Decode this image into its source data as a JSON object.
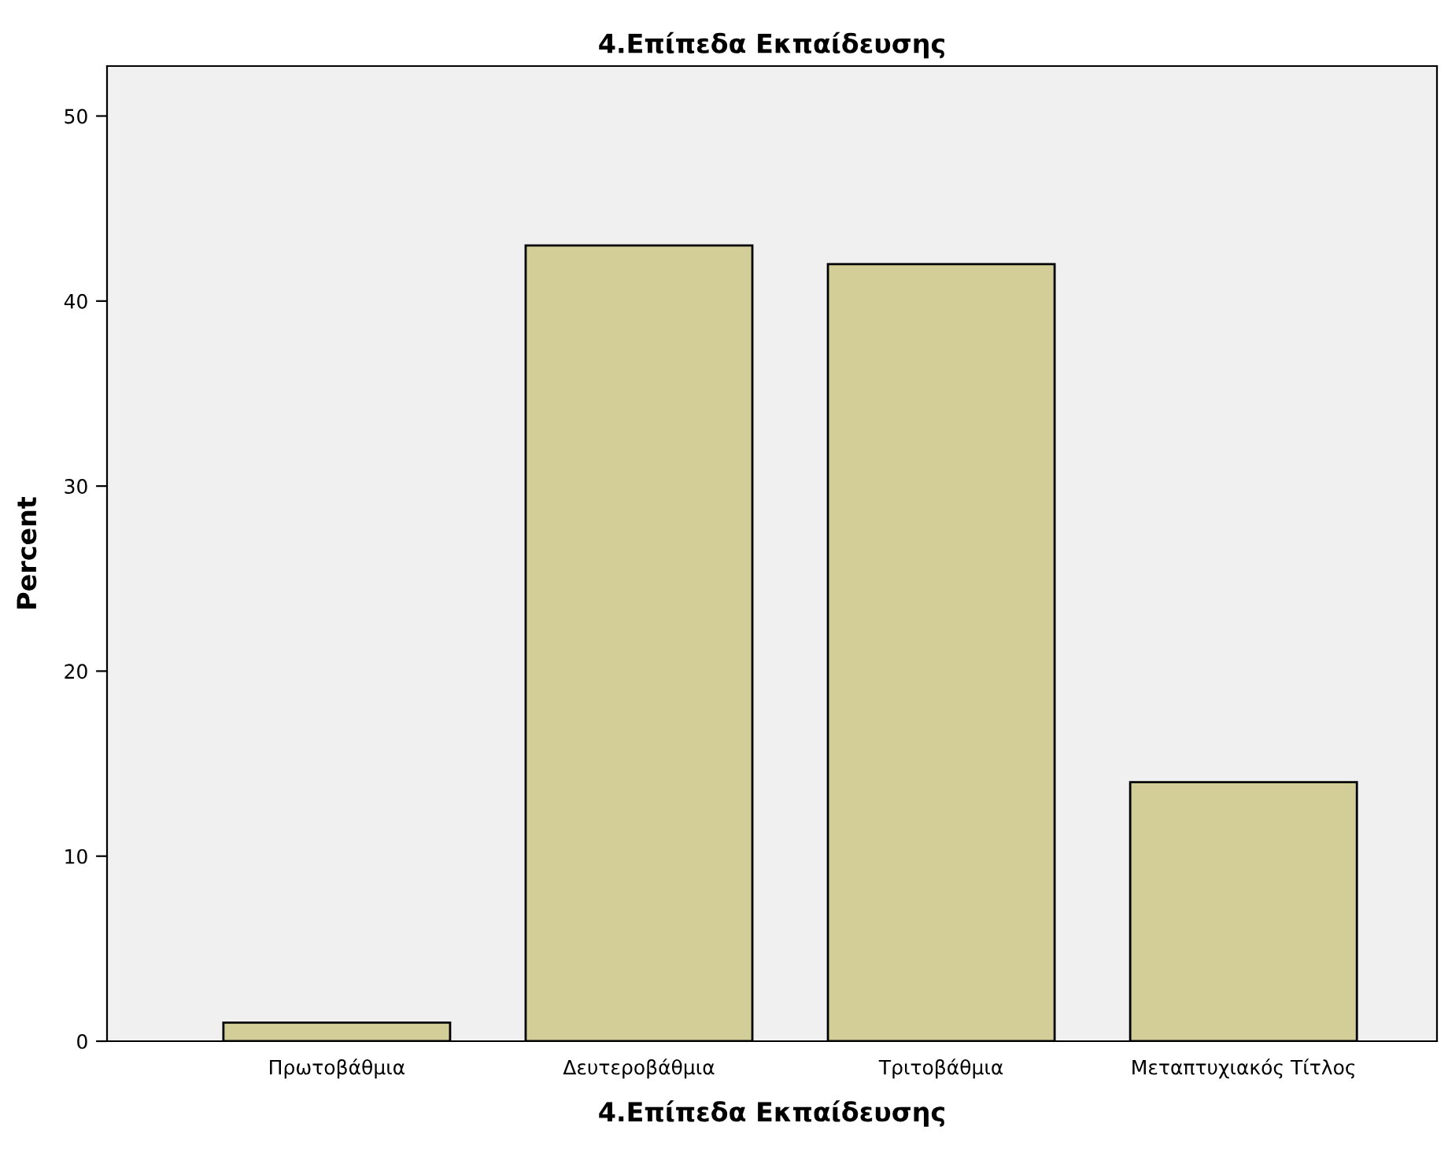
{
  "chart_data": {
    "type": "bar",
    "title": "4.Επίπεδα Εκπαίδευσης",
    "xlabel": "4.Επίπεδα Εκπαίδευσης",
    "ylabel": "Percent",
    "categories": [
      "Πρωτοβάθμια",
      "Δευτεροβάθμια",
      "Τριτοβάθμια",
      "Μεταπτυχιακός Τίτλος"
    ],
    "values": [
      1,
      43,
      42,
      14
    ],
    "color": "#d3ce98",
    "ylim": [
      0,
      52.7
    ],
    "yticks": [
      0,
      10,
      20,
      30,
      40,
      50
    ],
    "grid": false,
    "legend": false
  }
}
